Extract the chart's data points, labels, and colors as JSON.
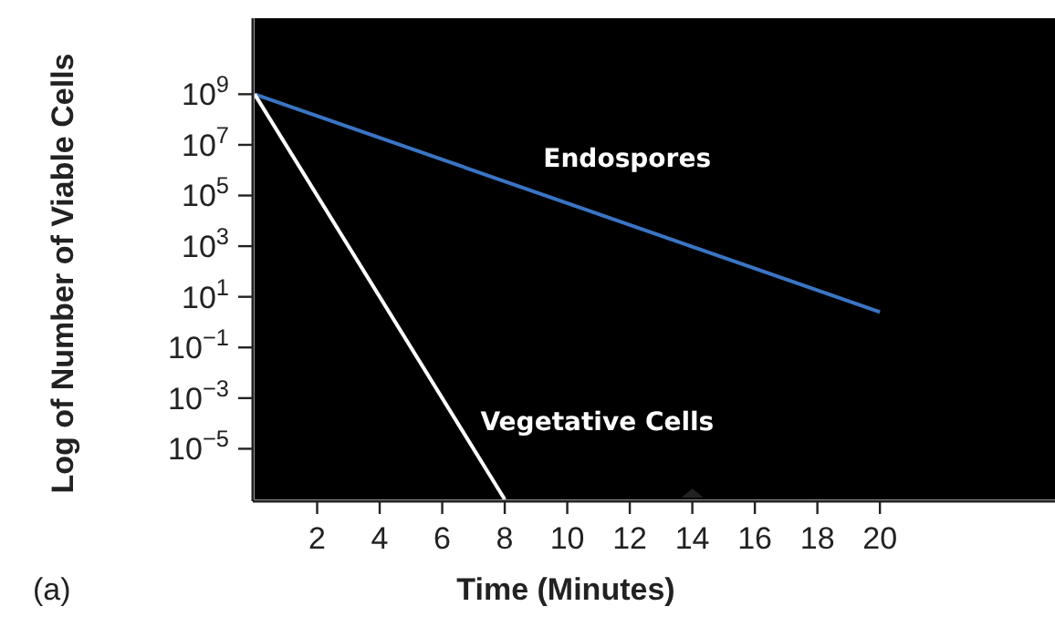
{
  "chart_data": {
    "type": "line",
    "xlabel": "Time (Minutes)",
    "ylabel": "Log of Number of Viable Cells",
    "annotations": [
      "(a)"
    ],
    "log": "y",
    "grid": false,
    "marker": "none",
    "line_style": "solid",
    "xlim": [
      0,
      25.6
    ],
    "xticks": [
      2,
      4,
      6,
      8,
      10,
      12,
      14,
      16,
      18,
      20
    ],
    "ylim": [
      1e-07,
      1000000000000.0
    ],
    "yticks": [
      {
        "value": 1000000000.0,
        "label": "10$^{9}$"
      },
      {
        "value": 10000000.0,
        "label": "10$^{7}$"
      },
      {
        "value": 100000.0,
        "label": "10$^{5}$"
      },
      {
        "value": 1000.0,
        "label": "10$^{3}$"
      },
      {
        "value": 10,
        "label": "10$^{1}$"
      },
      {
        "value": 0.1,
        "label": "10$^{−1}$"
      },
      {
        "value": 0.001,
        "label": "10$^{−3}$"
      },
      {
        "value": 1e-05,
        "label": "10$^{−5}$"
      }
    ],
    "series": [
      {
        "name": "Endospores",
        "color": "#3a75c4",
        "x": [
          0,
          20
        ],
        "values": [
          1000000000.0,
          2.5
        ]
      },
      {
        "name": "Vegetative Cells",
        "color": "#ffffff",
        "x": [
          0,
          8
        ],
        "values": [
          1000000000.0,
          1e-07
        ]
      }
    ]
  }
}
